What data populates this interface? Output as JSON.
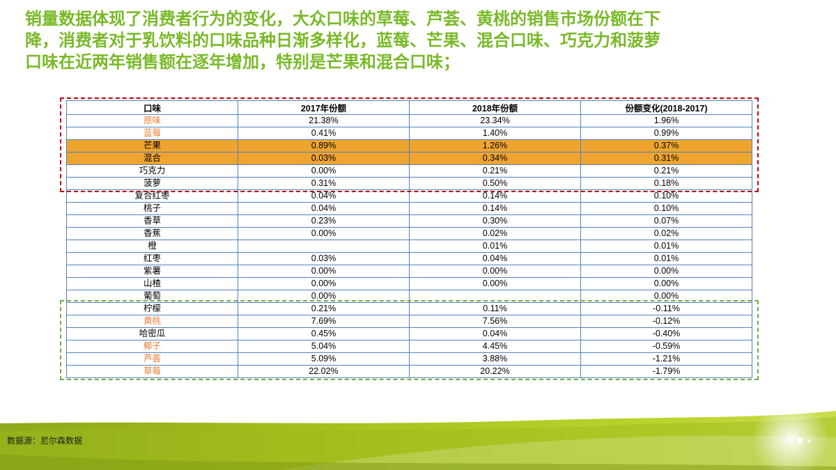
{
  "slide": {
    "title_lines": [
      "销量数据体现了消费者行为的变化，大众口味的草莓、芦荟、黄桃的销售市场份额在下",
      "降，消费者对于乳饮料的口味品种日渐多样化，蓝莓、芒果、混合口味、巧克力和菠萝",
      "口味在近两年销售额在逐年增加，特别是芒果和混合口味；"
    ]
  },
  "table": {
    "headers": [
      "口味",
      "2017年份额",
      "2018年份额",
      "份额变化(2018-2017)"
    ],
    "rows": [
      {
        "flavor": "原味",
        "v2017": "21.38%",
        "v2018": "23.34%",
        "change": "1.96%",
        "style": "orange"
      },
      {
        "flavor": "蓝莓",
        "v2017": "0.41%",
        "v2018": "1.40%",
        "change": "0.99%",
        "style": "orange"
      },
      {
        "flavor": "芒果",
        "v2017": "0.89%",
        "v2018": "1.26%",
        "change": "0.37%",
        "style": "highlight"
      },
      {
        "flavor": "混合",
        "v2017": "0.03%",
        "v2018": "0.34%",
        "change": "0.31%",
        "style": "highlight"
      },
      {
        "flavor": "巧克力",
        "v2017": "0.00%",
        "v2018": "0.21%",
        "change": "0.21%",
        "style": "normal"
      },
      {
        "flavor": "菠萝",
        "v2017": "0.31%",
        "v2018": "0.50%",
        "change": "0.18%",
        "style": "normal"
      },
      {
        "flavor": "复合红枣",
        "v2017": "0.04%",
        "v2018": "0.14%",
        "change": "0.10%",
        "style": "normal"
      },
      {
        "flavor": "桃子",
        "v2017": "0.04%",
        "v2018": "0.14%",
        "change": "0.10%",
        "style": "normal"
      },
      {
        "flavor": "香草",
        "v2017": "0.23%",
        "v2018": "0.30%",
        "change": "0.07%",
        "style": "normal"
      },
      {
        "flavor": "香蕉",
        "v2017": "0.00%",
        "v2018": "0.02%",
        "change": "0.02%",
        "style": "normal"
      },
      {
        "flavor": "橙",
        "v2017": "",
        "v2018": "0.01%",
        "change": "0.01%",
        "style": "normal"
      },
      {
        "flavor": "红枣",
        "v2017": "0.03%",
        "v2018": "0.04%",
        "change": "0.01%",
        "style": "normal"
      },
      {
        "flavor": "紫薯",
        "v2017": "0.00%",
        "v2018": "0.00%",
        "change": "0.00%",
        "style": "normal"
      },
      {
        "flavor": "山楂",
        "v2017": "0.00%",
        "v2018": "0.00%",
        "change": "0.00%",
        "style": "normal"
      },
      {
        "flavor": "葡萄",
        "v2017": "0.00%",
        "v2018": "",
        "change": "0.00%",
        "style": "normal"
      },
      {
        "flavor": "柠檬",
        "v2017": "0.21%",
        "v2018": "0.11%",
        "change": "-0.11%",
        "style": "normal"
      },
      {
        "flavor": "黄桃",
        "v2017": "7.69%",
        "v2018": "7.56%",
        "change": "-0.12%",
        "style": "orange"
      },
      {
        "flavor": "哈密瓜",
        "v2017": "0.45%",
        "v2018": "0.04%",
        "change": "-0.40%",
        "style": "normal"
      },
      {
        "flavor": "椰子",
        "v2017": "5.04%",
        "v2018": "4.45%",
        "change": "-0.59%",
        "style": "orange"
      },
      {
        "flavor": "芦荟",
        "v2017": "5.09%",
        "v2018": "3.88%",
        "change": "-1.21%",
        "style": "orange"
      },
      {
        "flavor": "草莓",
        "v2017": "22.02%",
        "v2018": "20.22%",
        "change": "-1.79%",
        "style": "orange"
      }
    ]
  },
  "footer": {
    "source": "数据源：尼尔森数据"
  },
  "colors": {
    "title_green": "#79B928",
    "flavor_text_orange": "#ED7D31",
    "highlight_row_orange": "#EEA42F",
    "table_border_blue": "#4F81BD",
    "increase_box_red": "#C00000",
    "decrease_box_green": "#70AD47"
  }
}
